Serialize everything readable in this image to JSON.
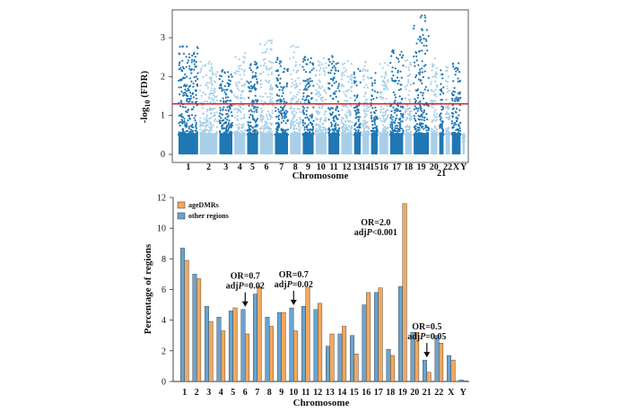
{
  "colors": {
    "manhattan_dark": "#1f77b4",
    "manhattan_light": "#a9cfe8",
    "threshold": "#e02424",
    "agedmr": "#f2a85c",
    "other": "#6aa3cf",
    "stroke": "#333333"
  },
  "chart_data": [
    {
      "type": "scatter",
      "subtype": "manhattan",
      "xlabel": "Chromosome",
      "ylabel_prefix": "-log",
      "ylabel_sub": "10",
      "ylabel_suffix": " (FDR)",
      "ylim": [
        0,
        3.6
      ],
      "yticks": [
        "0",
        "1",
        "2",
        "3"
      ],
      "ytick_values": [
        0,
        1,
        2,
        3
      ],
      "threshold": 1.3,
      "chromosomes": [
        "1",
        "2",
        "3",
        "4",
        "5",
        "6",
        "7",
        "8",
        "9",
        "10",
        "11",
        "12",
        "13",
        "14",
        "15",
        "16",
        "17",
        "18",
        "19",
        "20",
        "21",
        "22",
        "X",
        "Y"
      ],
      "chrom_labels": [
        "1",
        "2",
        "3",
        "4",
        "5",
        "6",
        "7",
        "8",
        "9",
        "10",
        "11",
        "12",
        "13",
        "14",
        "15",
        "16",
        "17",
        "18",
        "19",
        "20",
        "21",
        "22",
        "X",
        "Y"
      ],
      "chrom_widths": [
        9,
        8,
        6,
        5,
        5,
        6,
        6,
        5,
        5,
        5,
        5,
        5,
        3,
        3,
        3,
        4,
        6,
        3,
        7,
        3,
        2,
        2,
        4,
        1
      ],
      "chrom_peak": [
        2.8,
        2.4,
        2.2,
        2.6,
        2.4,
        3.0,
        2.5,
        2.8,
        2.6,
        2.5,
        2.6,
        2.4,
        2.2,
        2.4,
        2.1,
        2.4,
        2.7,
        2.6,
        3.6,
        2.5,
        2.2,
        2.3,
        2.6,
        0.3
      ]
    },
    {
      "type": "bar",
      "title": "",
      "xlabel": "Chromosome",
      "ylabel": "Percentage of regions",
      "ylim": [
        0,
        12
      ],
      "yticks": [
        "0",
        "2",
        "4",
        "6",
        "8",
        "10",
        "12"
      ],
      "ytick_values": [
        0,
        2,
        4,
        6,
        8,
        10,
        12
      ],
      "categories": [
        "1",
        "2",
        "3",
        "4",
        "5",
        "6",
        "7",
        "8",
        "9",
        "10",
        "11",
        "12",
        "13",
        "14",
        "15",
        "16",
        "17",
        "18",
        "19",
        "20",
        "21",
        "22",
        "X",
        "Y"
      ],
      "series": [
        {
          "name": "other regions",
          "values": [
            8.7,
            7.0,
            4.9,
            4.2,
            4.6,
            4.7,
            5.7,
            4.2,
            4.5,
            4.8,
            4.9,
            4.7,
            2.3,
            3.1,
            3.0,
            5.0,
            5.8,
            2.1,
            6.2,
            3.2,
            1.4,
            3.0,
            1.7,
            0.1
          ]
        },
        {
          "name": "ageDMRs",
          "values": [
            7.9,
            6.7,
            3.9,
            3.3,
            4.8,
            3.1,
            6.2,
            3.6,
            4.5,
            3.3,
            6.1,
            5.1,
            3.1,
            3.6,
            1.8,
            5.8,
            6.1,
            1.7,
            11.6,
            3.2,
            0.6,
            2.5,
            1.4,
            0.05
          ]
        }
      ],
      "legend": [
        "ageDMRs",
        "other regions"
      ],
      "annotations": [
        {
          "line1": "OR=0.7",
          "line2_prefix": "adj",
          "line2_italic": "P",
          "line2_suffix": "=0.02",
          "category": "6"
        },
        {
          "line1": "OR=0.7",
          "line2_prefix": "adj",
          "line2_italic": "P",
          "line2_suffix": "=0.02",
          "category": "10"
        },
        {
          "line1": "OR=2.0",
          "line2_prefix": "adj",
          "line2_italic": "P",
          "line2_suffix": "<0.001",
          "category": "19"
        },
        {
          "line1": "OR=0.5",
          "line2_prefix": "adj",
          "line2_italic": "P",
          "line2_suffix": "=0.05",
          "category": "21"
        }
      ]
    }
  ]
}
